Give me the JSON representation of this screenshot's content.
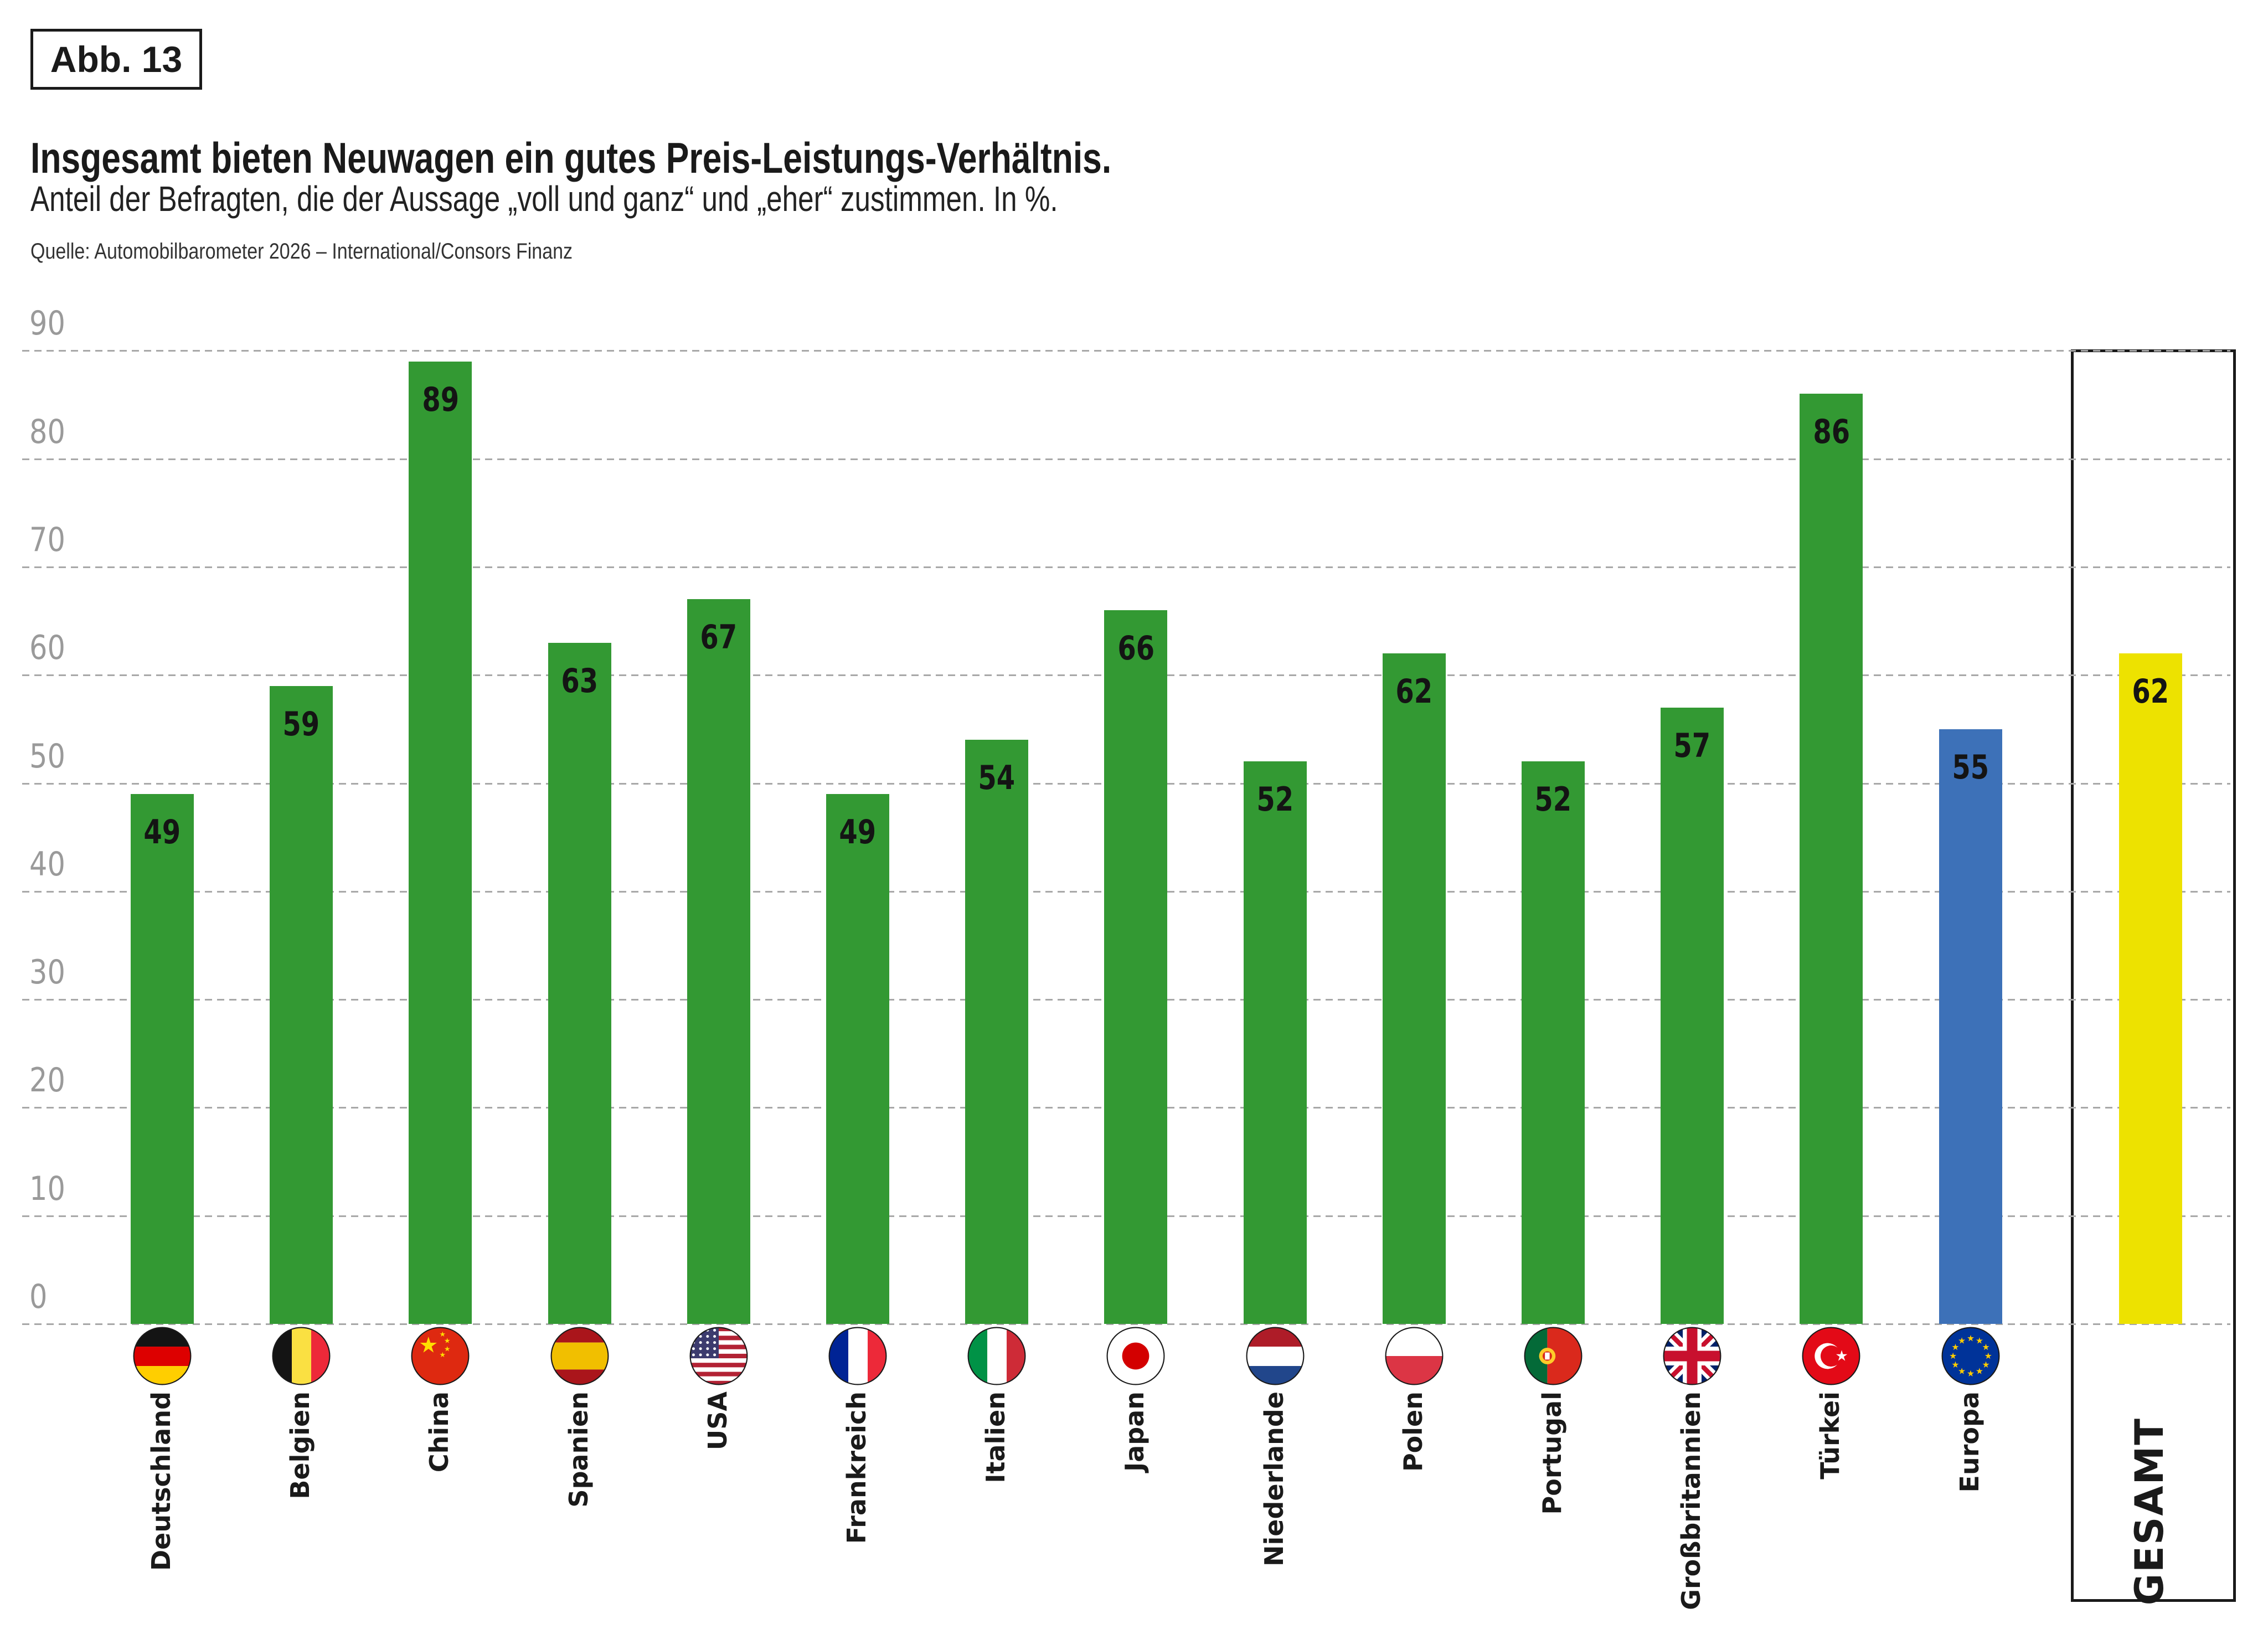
{
  "figure_label": "Abb. 13",
  "header": {
    "title": "Insgesamt bieten Neuwagen ein gutes Preis-Leistungs-Verhältnis.",
    "subtitle": "Anteil der Befragten, die der Aussage „voll und ganz“ und „eher“ zustimmen. In %.",
    "source": "Quelle: Automobilbarometer 2026 – International/Consors Finanz"
  },
  "chart_data": {
    "type": "bar",
    "title": "Insgesamt bieten Neuwagen ein gutes Preis-Leistungs-Verhältnis.",
    "subtitle": "Anteil der Befragten, die der Aussage „voll und ganz“ und „eher“ zustimmen. In %.",
    "xlabel": "",
    "ylabel": "",
    "ylim": [
      0,
      90
    ],
    "ytick_step": 10,
    "yticks": [
      "0",
      "10",
      "20",
      "30",
      "40",
      "50",
      "60",
      "70",
      "80",
      "90"
    ],
    "grid": "horizontal-dashed",
    "legend": "none",
    "categories": [
      "Deutschland",
      "Belgien",
      "China",
      "Spanien",
      "USA",
      "Frankreich",
      "Italien",
      "Japan",
      "Niederlande",
      "Polen",
      "Portugal",
      "Großbritannien",
      "Türkei",
      "Europa",
      "GESAMT"
    ],
    "values": [
      49,
      59,
      89,
      63,
      67,
      49,
      54,
      66,
      52,
      62,
      52,
      57,
      86,
      55,
      62
    ],
    "bars": [
      {
        "label": "Deutschland",
        "value": "49",
        "flag": "de",
        "color": "#339933"
      },
      {
        "label": "Belgien",
        "value": "59",
        "flag": "be",
        "color": "#339933"
      },
      {
        "label": "China",
        "value": "89",
        "flag": "cn",
        "color": "#339933"
      },
      {
        "label": "Spanien",
        "value": "63",
        "flag": "es",
        "color": "#339933"
      },
      {
        "label": "USA",
        "value": "67",
        "flag": "us",
        "color": "#339933"
      },
      {
        "label": "Frankreich",
        "value": "49",
        "flag": "fr",
        "color": "#339933"
      },
      {
        "label": "Italien",
        "value": "54",
        "flag": "it",
        "color": "#339933"
      },
      {
        "label": "Japan",
        "value": "66",
        "flag": "jp",
        "color": "#339933"
      },
      {
        "label": "Niederlande",
        "value": "52",
        "flag": "nl",
        "color": "#339933"
      },
      {
        "label": "Polen",
        "value": "62",
        "flag": "pl",
        "color": "#339933"
      },
      {
        "label": "Portugal",
        "value": "52",
        "flag": "pt",
        "color": "#339933"
      },
      {
        "label": "Großbritannien",
        "value": "57",
        "flag": "gb",
        "color": "#339933"
      },
      {
        "label": "Türkei",
        "value": "86",
        "flag": "tr",
        "color": "#339933"
      },
      {
        "label": "Europa",
        "value": "55",
        "flag": "eu",
        "color": "#3D71B8"
      },
      {
        "label": "GESAMT",
        "value": "62",
        "flag": "none",
        "color": "#EDE200"
      }
    ],
    "bar_colors": {
      "country": "#339933",
      "europa": "#3D71B8",
      "gesamt": "#EDE200"
    },
    "highlighted_total_column": "GESAMT"
  }
}
